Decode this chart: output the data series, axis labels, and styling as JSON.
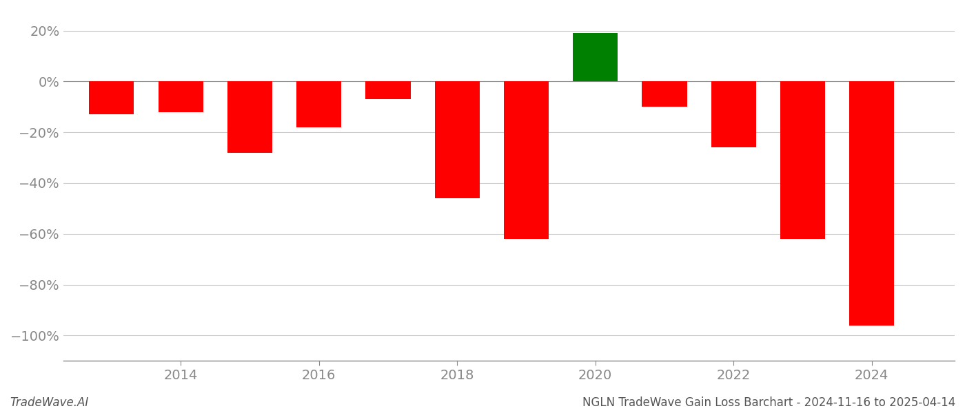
{
  "years": [
    2013,
    2014,
    2015,
    2016,
    2017,
    2018,
    2019,
    2020,
    2021,
    2022,
    2023,
    2024
  ],
  "values": [
    -13.0,
    -12.0,
    -28.0,
    -18.0,
    -7.0,
    -46.0,
    -62.0,
    19.0,
    -10.0,
    -26.0,
    -62.0,
    -96.0
  ],
  "colors": [
    "#ff0000",
    "#ff0000",
    "#ff0000",
    "#ff0000",
    "#ff0000",
    "#ff0000",
    "#ff0000",
    "#008000",
    "#ff0000",
    "#ff0000",
    "#ff0000",
    "#ff0000"
  ],
  "ylim": [
    -110,
    28
  ],
  "yticks": [
    20,
    0,
    -20,
    -40,
    -60,
    -80,
    -100
  ],
  "ytick_labels": [
    "20%",
    "0%",
    "−20%",
    "−40%",
    "−60%",
    "−80%",
    "−100%"
  ],
  "xtick_positions": [
    2014,
    2016,
    2018,
    2020,
    2022,
    2024
  ],
  "title": "NGLN TradeWave Gain Loss Barchart - 2024-11-16 to 2025-04-14",
  "watermark": "TradeWave.AI",
  "bar_width": 0.65,
  "xlim_left": 2012.3,
  "xlim_right": 2025.2,
  "background_color": "#ffffff",
  "grid_color": "#cccccc",
  "axis_color": "#888888",
  "title_fontsize": 12,
  "watermark_fontsize": 12,
  "tick_fontsize": 14,
  "tick_color": "#888888"
}
